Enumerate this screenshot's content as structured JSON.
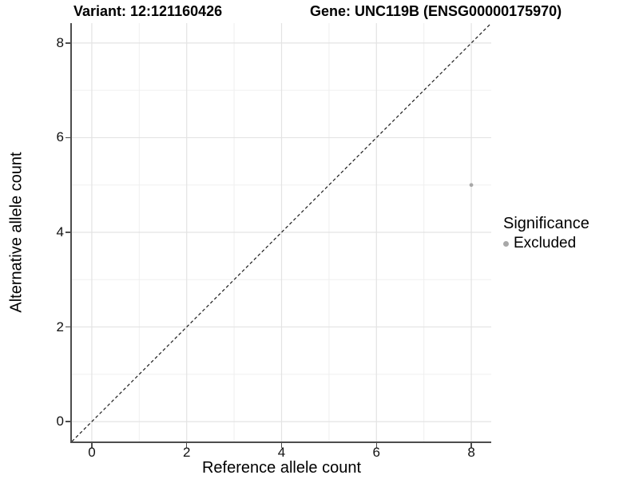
{
  "header": {
    "variant_label": "Variant: 12:121160426",
    "gene_label": "Gene: UNC119B (ENSG00000175970)"
  },
  "chart_data": {
    "type": "scatter",
    "xlabel": "Reference allele count",
    "ylabel": "Alternative allele count",
    "xlim": [
      -0.42,
      8.42
    ],
    "ylim": [
      -0.42,
      8.42
    ],
    "x_ticks": [
      0,
      2,
      4,
      6,
      8
    ],
    "y_ticks": [
      0,
      2,
      4,
      6,
      8
    ],
    "x_minor_ticks": [
      1,
      3,
      5,
      7
    ],
    "y_minor_ticks": [
      1,
      3,
      5,
      7
    ],
    "grid": true,
    "points": [
      {
        "x": 8,
        "y": 5,
        "series": "Excluded"
      }
    ],
    "reference_line": {
      "type": "identity",
      "style": "dashed",
      "from": [
        -0.42,
        -0.42
      ],
      "to": [
        8.42,
        8.42
      ]
    },
    "legend": {
      "position": "right",
      "title": "Significance",
      "items": [
        {
          "label": "Excluded",
          "color": "#a8a8a8"
        }
      ]
    },
    "colors": {
      "point": "#a8a8a8",
      "grid_major": "#e3e3e3",
      "grid_minor": "#efefef",
      "axis_line": "#4d4d4d",
      "reference_line": "#1c1c1c",
      "text": "#000000"
    }
  }
}
